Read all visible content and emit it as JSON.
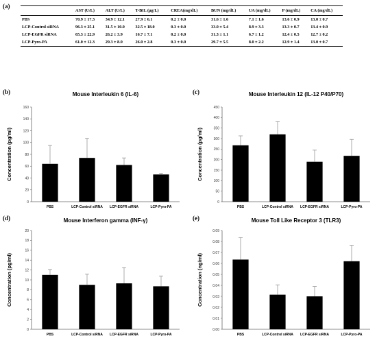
{
  "table": {
    "label": "(a)",
    "headers": [
      "",
      "AST (U/L)",
      "ALT (U/L)",
      "T-BIL (μg/L)",
      "CREA(mg/dL)",
      "BUN (mg/dL)",
      "UA (mg/dL)",
      "P (mg/dL)",
      "CA (mg/dL)"
    ],
    "rows": [
      [
        "PBS",
        "70.9 ± 17.3",
        "34.9 ± 12.1",
        "27.9 ± 6.1",
        "0.2 ± 0.0",
        "31.6 ± 1.6",
        "7.1 ± 1.6",
        "13.6 ± 0.9",
        "13.0 ± 0.7"
      ],
      [
        "LCP-Control siRNA",
        "96.3 ± 25.1",
        "31.5 ± 10.0",
        "32.5 ± 18.0",
        "0.3 ± 0.0",
        "33.0 ± 5.4",
        "8.9 ± 3.3",
        "13.3 ± 0.7",
        "13.4 ± 0.9"
      ],
      [
        "LCP-EGFR siRNA",
        "65.3 ± 22.9",
        "26.2 ± 3.9",
        "16.7 ± 7.1",
        "0.2 ± 0.0",
        "31.3 ± 1.1",
        "6.7 ± 1.2",
        "12.4 ± 0.5",
        "12.7 ± 0.2"
      ],
      [
        "LCP-Pyro-PA",
        "61.0 ± 12.3",
        "29.3 ± 8.0",
        "26.0 ± 2.8",
        "0.3 ± 0.0",
        "29.7 ± 5.5",
        "8.0 ± 2.2",
        "12.9 ± 1.4",
        "13.0 ± 0.7"
      ]
    ]
  },
  "chart_data": [
    {
      "id": "b",
      "panel_label": "(b)",
      "type": "bar",
      "title": "Mouse Interleukin 6 (IL-6)",
      "ylabel": "Concentration (pg/ml)",
      "xlabel": "",
      "categories": [
        "PBS",
        "LCP-Control siRNA",
        "LCP-EGFR siRNA",
        "LCP-Pyro-PA"
      ],
      "values": [
        64,
        74,
        62,
        46
      ],
      "errors": [
        31,
        33,
        12,
        2
      ],
      "ylim": [
        0,
        160
      ],
      "yticks": [
        "0",
        "20",
        "40",
        "60",
        "80",
        "100",
        "120",
        "140",
        "160"
      ],
      "bar_color": "#000000"
    },
    {
      "id": "c",
      "panel_label": "(c)",
      "type": "bar",
      "title": "Mouse Interleukin 12 (IL-12 P40/P70)",
      "ylabel": "Concentration (pg/ml)",
      "xlabel": "",
      "categories": [
        "PBS",
        "LCP-Control siRNA",
        "LCP-EGFR siRNA",
        "LCP-Pyro-PA"
      ],
      "values": [
        268,
        320,
        190,
        218
      ],
      "errors": [
        45,
        60,
        55,
        78
      ],
      "ylim": [
        0,
        450
      ],
      "yticks": [
        "0",
        "50",
        "100",
        "150",
        "200",
        "250",
        "300",
        "350",
        "400",
        "450"
      ],
      "bar_color": "#000000"
    },
    {
      "id": "d",
      "panel_label": "(d)",
      "type": "bar",
      "title": "Mouse Interferon gamma (INF-γ)",
      "ylabel": "Concentration (pg/ml)",
      "xlabel": "",
      "categories": [
        "PBS",
        "LCP-Control siRNA",
        "LCP-EGFR siRNA",
        "LCP-Pyro-PA"
      ],
      "values": [
        11,
        9,
        9.3,
        8.7
      ],
      "errors": [
        1.1,
        2.2,
        3.2,
        2.1
      ],
      "ylim": [
        0,
        20
      ],
      "yticks": [
        "0",
        "2",
        "4",
        "6",
        "8",
        "10",
        "12",
        "14",
        "16",
        "18",
        "20"
      ],
      "bar_color": "#000000"
    },
    {
      "id": "e",
      "panel_label": "(e)",
      "type": "bar",
      "title": "Mouse Toll Like Receptor 3 (TLR3)",
      "ylabel": "Concentration (ng/ml)",
      "xlabel": "",
      "categories": [
        "PBS",
        "LCP-Control siRNA",
        "LCP-EGFR siRNA",
        "LCP-Pyro-PA"
      ],
      "values": [
        0.0635,
        0.0315,
        0.03,
        0.062
      ],
      "errors": [
        0.02,
        0.009,
        0.009,
        0.0145
      ],
      "ylim": [
        0,
        0.09
      ],
      "yticks": [
        "0.00",
        "0.01",
        "0.02",
        "0.03",
        "0.04",
        "0.05",
        "0.06",
        "0.07",
        "0.08",
        "0.09"
      ],
      "bar_color": "#000000"
    }
  ]
}
